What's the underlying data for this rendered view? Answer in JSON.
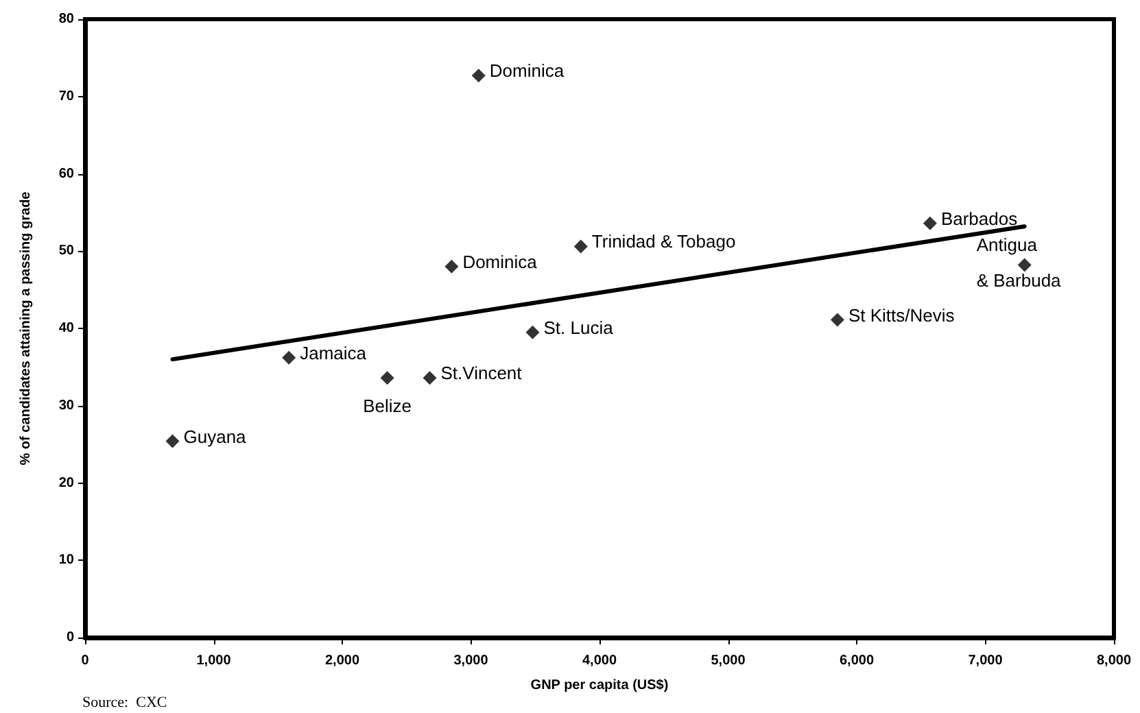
{
  "chart_data": {
    "type": "scatter",
    "xlabel": "GNP per capita (US$)",
    "ylabel": "% of candidates attaining a passing grade",
    "marker": "diamond",
    "series": [
      {
        "color": "#000000",
        "x": [
          3060,
          2850,
          3480,
          1585,
          2350,
          2680,
          680,
          3855,
          6570,
          7305,
          5850
        ],
        "values": [
          72.7,
          48.0,
          39.5,
          36.2,
          33.6,
          33.6,
          25.4,
          50.6,
          53.6,
          48.2,
          41.1
        ]
      },
      {
        "type": "line",
        "color": "#000000",
        "line_style": "solid",
        "marker": "none",
        "x": [
          680,
          7305
        ],
        "values": [
          36.0,
          53.2
        ]
      }
    ],
    "annotations": [
      {
        "text": "Dominica",
        "x": 3060,
        "y": 72.7
      },
      {
        "text": "Dominica",
        "x": 2850,
        "y": 48.0
      },
      {
        "text": "St. Lucia",
        "x": 3480,
        "y": 39.5
      },
      {
        "text": "Jamaica",
        "x": 1585,
        "y": 36.2
      },
      {
        "text": "Belize",
        "x": 2350,
        "y": 33.6
      },
      {
        "text": "St.Vincent",
        "x": 2680,
        "y": 33.6
      },
      {
        "text": "Guyana",
        "x": 680,
        "y": 25.4
      },
      {
        "text": "Trinidad & Tobago",
        "x": 3855,
        "y": 50.6
      },
      {
        "text": "Barbados",
        "x": 6570,
        "y": 53.6
      },
      {
        "text": "Antigua\n& Barbuda",
        "x": 7305,
        "y": 48.2
      },
      {
        "text": "St Kitts/Nevis",
        "x": 5850,
        "y": 41.1
      },
      "Source:  CXC"
    ],
    "xlim": [
      0,
      8000
    ],
    "xticks": [
      0,
      {
        "value": 1000,
        "label": "1,000"
      },
      {
        "value": 2000,
        "label": "2,000"
      },
      {
        "value": 3000,
        "label": "3,000"
      },
      {
        "value": 4000,
        "label": "4,000"
      },
      {
        "value": 5000,
        "label": "5,000"
      },
      {
        "value": 6000,
        "label": "6,000"
      },
      {
        "value": 7000,
        "label": "7,000"
      },
      {
        "value": 8000,
        "label": "8,000"
      }
    ],
    "ylim": [
      0,
      80
    ],
    "yticks": [
      0,
      10,
      20,
      30,
      40,
      50,
      60,
      70,
      80
    ],
    "grid": false
  }
}
